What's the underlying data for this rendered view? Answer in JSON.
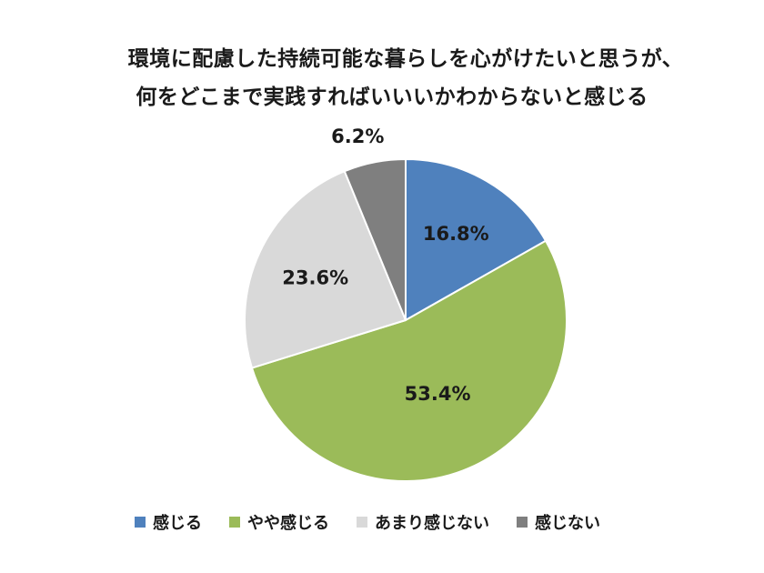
{
  "chart_data": {
    "type": "pie",
    "title": "環境に配慮した持続可能な暮らしを心がけたいと思うが、何をどこまで実践すればいいいかわからないと感じる",
    "title_lines": [
      "環境に配慮した持続可能な暮らしを心がけたいと思うが、",
      "何をどこまで実践すればいいいかわからないと感じる"
    ],
    "categories": [
      "感じる",
      "やや感じる",
      "あまり感じない",
      "感じない"
    ],
    "values": [
      16.8,
      53.4,
      23.6,
      6.2
    ],
    "unit": "%",
    "data_labels": [
      "16.8%",
      "53.4%",
      "23.6%",
      "6.2%"
    ],
    "colors": [
      "#4f81bd",
      "#9bbb59",
      "#d9d9d9",
      "#7f7f7f"
    ],
    "start_angle": "12 o'clock",
    "direction": "clockwise",
    "legend": {
      "placement": "bottom",
      "entries": [
        "感じる",
        "やや感じる",
        "あまり感じない",
        "感じない"
      ]
    },
    "grid": false
  }
}
